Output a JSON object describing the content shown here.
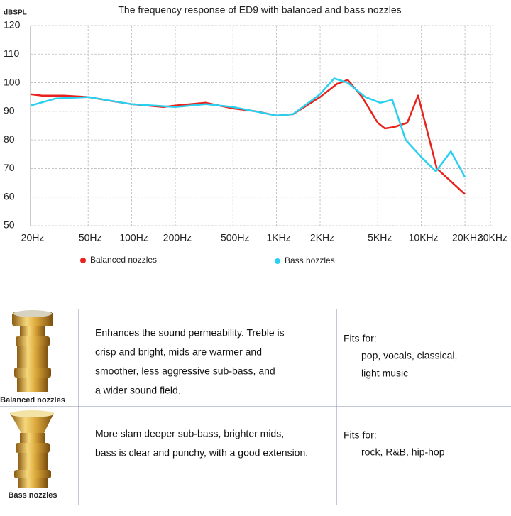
{
  "chart_data": {
    "type": "line",
    "title": "The frequency response of ED9 with balanced  and bass nozzles",
    "y_label": "dBSPL",
    "xscale": "log",
    "grid": true,
    "xlim": [
      20,
      30000
    ],
    "ylim": [
      50,
      120
    ],
    "xticks": [
      {
        "value": 20,
        "label": "20Hz"
      },
      {
        "value": 50,
        "label": "50Hz"
      },
      {
        "value": 100,
        "label": "100Hz"
      },
      {
        "value": 200,
        "label": "200Hz"
      },
      {
        "value": 500,
        "label": "500Hz"
      },
      {
        "value": 1000,
        "label": "1KHz"
      },
      {
        "value": 2000,
        "label": "2KHz"
      },
      {
        "value": 5000,
        "label": "5KHz"
      },
      {
        "value": 10000,
        "label": "10KHz"
      },
      {
        "value": 20000,
        "label": "20KHz"
      },
      {
        "value": 30000,
        "label": "30KHz"
      }
    ],
    "yticks": [
      50,
      60,
      70,
      80,
      90,
      100,
      110,
      120
    ],
    "series": [
      {
        "name": "Balanced nozzles",
        "color": "#e8231e",
        "x": [
          20,
          24,
          34,
          50,
          75,
          100,
          165,
          200,
          325,
          500,
          720,
          1000,
          1300,
          2000,
          2600,
          3100,
          3900,
          5000,
          5600,
          6500,
          8000,
          9500,
          12800,
          20000
        ],
        "values": [
          96,
          95.5,
          95.5,
          95,
          93.5,
          92.5,
          91.5,
          92,
          93,
          91,
          90,
          88.5,
          89,
          95,
          99.5,
          101,
          95,
          86,
          84,
          84.5,
          86,
          95.5,
          70,
          61
        ]
      },
      {
        "name": "Bass nozzles",
        "color": "#29d0f0",
        "x": [
          20,
          30,
          50,
          100,
          200,
          325,
          500,
          1000,
          1300,
          2000,
          2500,
          3100,
          4100,
          5200,
          6300,
          7800,
          10000,
          12600,
          16000,
          20000
        ],
        "values": [
          92,
          94.5,
          95,
          92.5,
          91.5,
          92.5,
          91.5,
          88.5,
          89,
          96,
          101.5,
          100,
          95,
          93,
          94,
          80,
          74,
          69,
          76,
          67
        ]
      }
    ]
  },
  "table": {
    "rows": [
      {
        "caption": "Balanced nozzles",
        "description": [
          "Enhances the sound permeability. Treble is",
          "crisp and bright, mids are warmer and",
          "smoother, less aggressive sub-bass, and",
          "a wider sound field."
        ],
        "fits_title": "Fits for:",
        "fits": [
          "pop, vocals, classical,",
          "light music"
        ]
      },
      {
        "caption": "Bass nozzles",
        "description": [
          "More slam deeper sub-bass, brighter mids,",
          "bass is clear and punchy, with a good extension."
        ],
        "fits_title": "Fits for:",
        "fits": [
          "rock, R&B, hip-hop"
        ]
      }
    ]
  }
}
